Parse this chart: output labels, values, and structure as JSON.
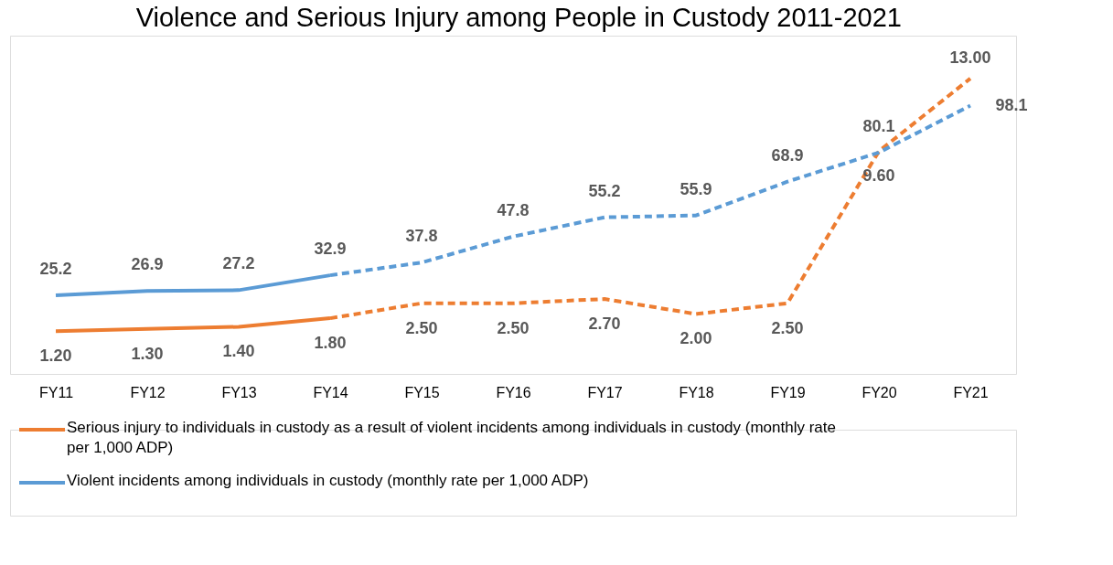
{
  "chart_data": {
    "type": "line",
    "title": "Violence and Serious Injury among People in Custody 2011-2021",
    "categories": [
      "FY11",
      "FY12",
      "FY13",
      "FY14",
      "FY15",
      "FY16",
      "FY17",
      "FY18",
      "FY19",
      "FY20",
      "FY21"
    ],
    "series": [
      {
        "name": "Serious injury to individuals in custody as a result of violent incidents among individuals in custody (monthly rate per 1,000 ADP)",
        "color": "#ed7d31",
        "axis": "y2",
        "line_style": "solid",
        "values": [
          1.2,
          1.3,
          1.4,
          1.8,
          null,
          null,
          null,
          null,
          null,
          null,
          null
        ],
        "value_labels": [
          "1.20",
          "1.30",
          "1.40",
          "1.80",
          null,
          null,
          null,
          null,
          null,
          null,
          null
        ]
      },
      {
        "color": "#ed7d31",
        "axis": "y2",
        "line_style": "dashed",
        "values": [
          null,
          null,
          null,
          1.8,
          2.5,
          2.5,
          2.7,
          2.0,
          2.5,
          9.6,
          13.0
        ],
        "value_labels": [
          null,
          null,
          null,
          null,
          "2.50",
          "2.50",
          "2.70",
          "2.00",
          "2.50",
          "9.60",
          "13.00"
        ]
      },
      {
        "name": "Violent incidents among individuals in custody (monthly rate per 1,000 ADP)",
        "color": "#5b9bd5",
        "axis": "y",
        "line_style": "solid",
        "values": [
          25.2,
          26.9,
          27.2,
          32.9,
          null,
          null,
          null,
          null,
          null,
          null,
          null
        ],
        "value_labels": [
          "25.2",
          "26.9",
          "27.2",
          "32.9",
          null,
          null,
          null,
          null,
          null,
          null,
          null
        ]
      },
      {
        "color": "#5b9bd5",
        "axis": "y",
        "line_style": "dashed",
        "values": [
          null,
          null,
          null,
          32.9,
          37.8,
          47.8,
          55.2,
          55.9,
          68.9,
          80.1,
          98.1
        ],
        "value_labels": [
          null,
          null,
          null,
          null,
          "37.8",
          "47.8",
          "55.2",
          "55.9",
          "68.9",
          "80.1",
          "98.1"
        ]
      }
    ],
    "ylim": [
      -5,
      125
    ],
    "y2lim": [
      -0.8,
      15
    ],
    "tick_labels": "x",
    "grid": false,
    "legend": "bottom",
    "marker": "none"
  }
}
